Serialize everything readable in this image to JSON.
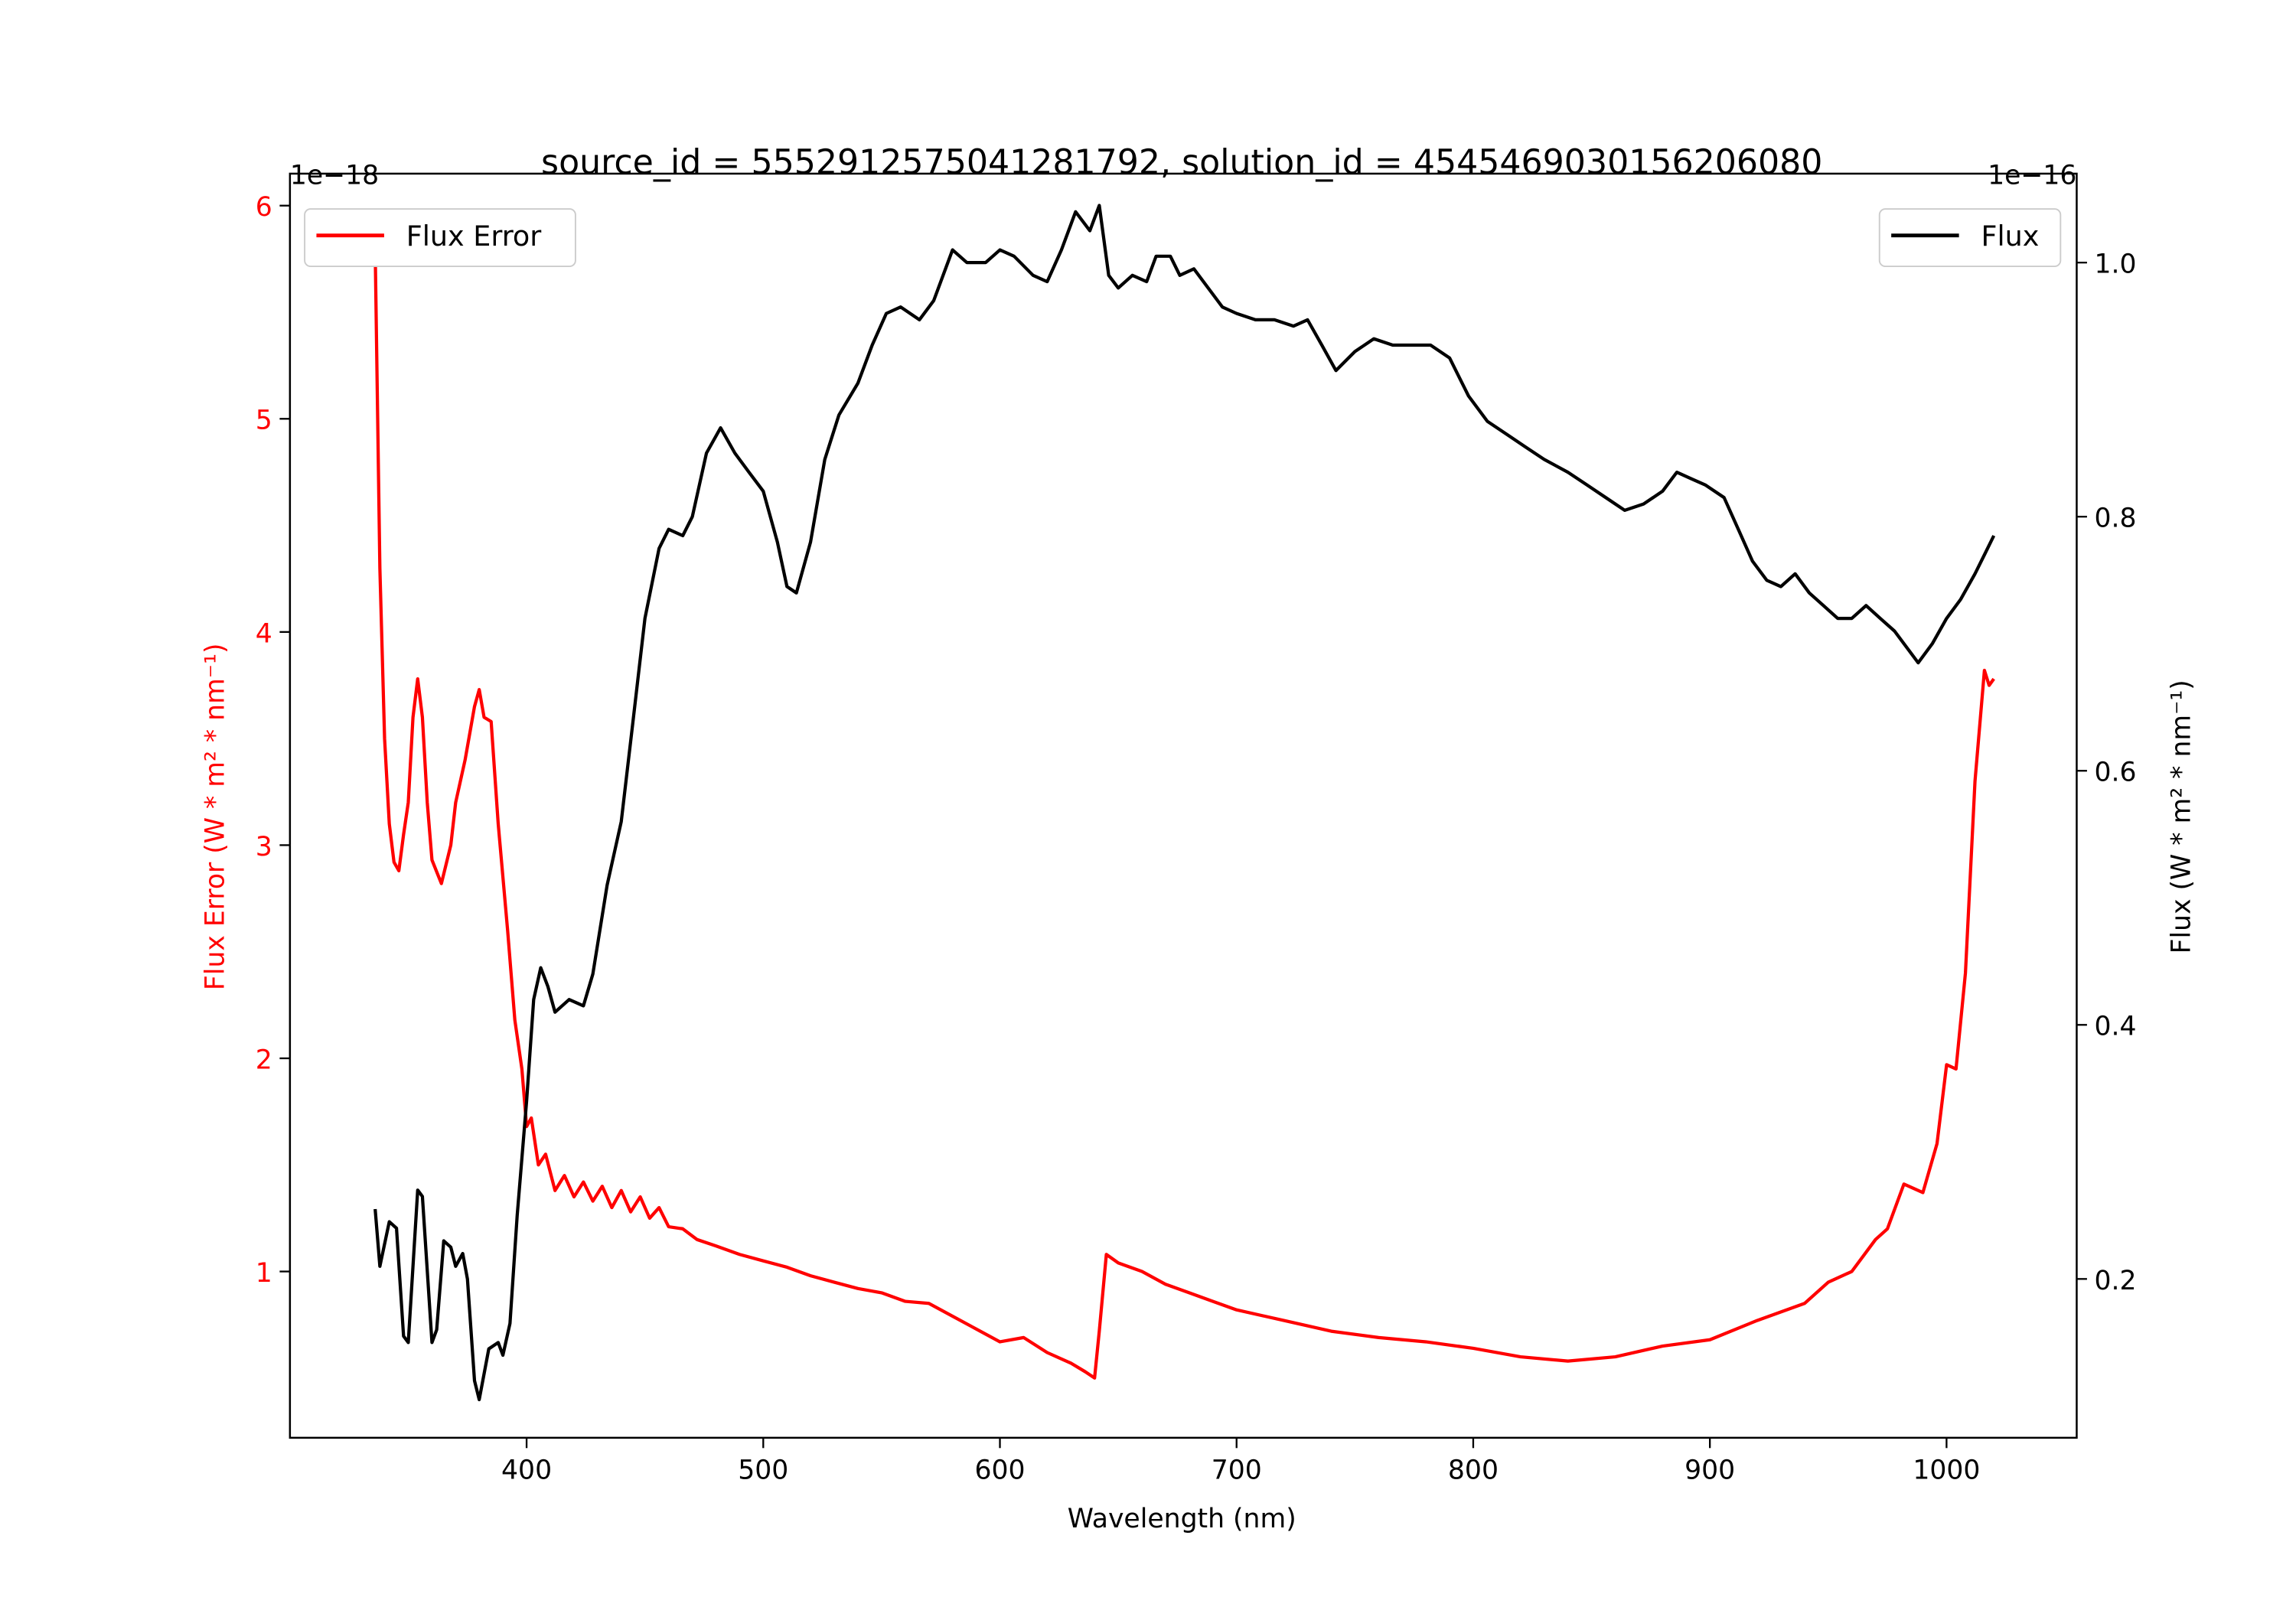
{
  "chart_data": {
    "type": "line",
    "title": "source_id = 5552912575041281792, solution_id = 4545469030156206080",
    "xlabel": "Wavelength (nm)",
    "ylabel_left": "Flux Error (W * m² * nm⁻¹)",
    "ylabel_right": "Flux (W * m² * nm⁻¹)",
    "left_offset_label": "1e−18",
    "right_offset_label": "1e−16",
    "xlim": [
      300,
      1055
    ],
    "ylim_left": [
      0.22,
      6.15
    ],
    "ylim_right": [
      0.075,
      1.07
    ],
    "xticks": [
      400,
      500,
      600,
      700,
      800,
      900,
      1000
    ],
    "yticks_left": [
      1,
      2,
      3,
      4,
      5,
      6
    ],
    "yticks_right": [
      0.2,
      0.4,
      0.6,
      0.8,
      1.0
    ],
    "yticks_right_labels": [
      "0.2",
      "0.4",
      "0.6",
      "0.8",
      "1.0"
    ],
    "colors": {
      "flux_error": "#ff0000",
      "flux": "#000000"
    },
    "series": [
      {
        "name": "Flux Error",
        "axis": "left",
        "legend": "top-left",
        "x": [
          336,
          338,
          340,
          342,
          344,
          346,
          348,
          350,
          352,
          354,
          356,
          358,
          360,
          364,
          368,
          370,
          374,
          378,
          380,
          382,
          385,
          388,
          392,
          395,
          398,
          400,
          402,
          405,
          408,
          412,
          416,
          420,
          424,
          428,
          432,
          436,
          440,
          444,
          448,
          452,
          456,
          460,
          466,
          472,
          480,
          490,
          500,
          510,
          520,
          530,
          540,
          550,
          560,
          570,
          580,
          590,
          600,
          610,
          620,
          630,
          636,
          640,
          642,
          645,
          650,
          660,
          670,
          680,
          690,
          700,
          720,
          740,
          760,
          780,
          800,
          820,
          840,
          860,
          880,
          900,
          920,
          940,
          950,
          960,
          970,
          975,
          982,
          990,
          996,
          1000,
          1004,
          1008,
          1012,
          1016,
          1018,
          1020
        ],
        "y": [
          5.8,
          4.3,
          3.5,
          3.1,
          2.92,
          2.88,
          3.05,
          3.2,
          3.6,
          3.78,
          3.6,
          3.2,
          2.93,
          2.82,
          3.0,
          3.2,
          3.4,
          3.65,
          3.73,
          3.6,
          3.58,
          3.1,
          2.6,
          2.18,
          1.95,
          1.68,
          1.72,
          1.5,
          1.55,
          1.38,
          1.45,
          1.35,
          1.42,
          1.33,
          1.4,
          1.3,
          1.38,
          1.28,
          1.35,
          1.25,
          1.3,
          1.21,
          1.2,
          1.15,
          1.12,
          1.08,
          1.05,
          1.02,
          0.98,
          0.95,
          0.92,
          0.9,
          0.86,
          0.85,
          0.79,
          0.73,
          0.67,
          0.69,
          0.62,
          0.57,
          0.53,
          0.5,
          0.72,
          1.08,
          1.04,
          1.0,
          0.94,
          0.9,
          0.86,
          0.82,
          0.77,
          0.72,
          0.69,
          0.67,
          0.64,
          0.6,
          0.58,
          0.6,
          0.65,
          0.68,
          0.77,
          0.85,
          0.95,
          1.0,
          1.15,
          1.2,
          1.41,
          1.37,
          1.6,
          1.97,
          1.95,
          2.4,
          3.3,
          3.82,
          3.75,
          3.78
        ]
      },
      {
        "name": "Flux",
        "axis": "right",
        "legend": "top-right",
        "x": [
          336,
          338,
          342,
          345,
          348,
          350,
          354,
          356,
          360,
          362,
          365,
          368,
          370,
          373,
          375,
          378,
          380,
          384,
          388,
          390,
          393,
          396,
          400,
          403,
          406,
          409,
          412,
          418,
          424,
          428,
          434,
          440,
          445,
          450,
          456,
          460,
          466,
          470,
          476,
          482,
          488,
          494,
          500,
          506,
          510,
          514,
          520,
          526,
          532,
          540,
          546,
          552,
          558,
          566,
          572,
          580,
          586,
          594,
          600,
          606,
          614,
          620,
          626,
          632,
          638,
          642,
          646,
          650,
          656,
          662,
          666,
          672,
          676,
          682,
          688,
          694,
          700,
          708,
          716,
          724,
          730,
          736,
          742,
          750,
          758,
          766,
          774,
          782,
          790,
          798,
          806,
          814,
          822,
          830,
          840,
          848,
          856,
          864,
          872,
          880,
          886,
          892,
          898,
          906,
          912,
          918,
          924,
          930,
          936,
          942,
          948,
          954,
          960,
          966,
          972,
          978,
          984,
          988,
          994,
          1000,
          1006,
          1012,
          1016,
          1020
        ],
        "y": [
          0.255,
          0.21,
          0.245,
          0.24,
          0.155,
          0.15,
          0.27,
          0.265,
          0.15,
          0.16,
          0.23,
          0.225,
          0.21,
          0.22,
          0.2,
          0.12,
          0.105,
          0.145,
          0.15,
          0.14,
          0.165,
          0.25,
          0.34,
          0.42,
          0.445,
          0.43,
          0.41,
          0.42,
          0.415,
          0.44,
          0.51,
          0.56,
          0.64,
          0.72,
          0.775,
          0.79,
          0.785,
          0.8,
          0.85,
          0.87,
          0.85,
          0.835,
          0.82,
          0.78,
          0.745,
          0.74,
          0.78,
          0.845,
          0.88,
          0.905,
          0.935,
          0.96,
          0.965,
          0.955,
          0.97,
          1.01,
          1.0,
          1.0,
          1.01,
          1.005,
          0.99,
          0.985,
          1.01,
          1.04,
          1.025,
          1.045,
          0.99,
          0.98,
          0.99,
          0.985,
          1.005,
          1.005,
          0.99,
          0.995,
          0.98,
          0.965,
          0.96,
          0.955,
          0.955,
          0.95,
          0.955,
          0.935,
          0.915,
          0.93,
          0.94,
          0.935,
          0.935,
          0.935,
          0.925,
          0.895,
          0.875,
          0.865,
          0.855,
          0.845,
          0.835,
          0.825,
          0.815,
          0.805,
          0.81,
          0.82,
          0.835,
          0.83,
          0.825,
          0.815,
          0.79,
          0.765,
          0.75,
          0.745,
          0.755,
          0.74,
          0.73,
          0.72,
          0.72,
          0.73,
          0.72,
          0.71,
          0.695,
          0.685,
          0.7,
          0.72,
          0.735,
          0.755,
          0.77,
          0.785
        ]
      }
    ]
  }
}
